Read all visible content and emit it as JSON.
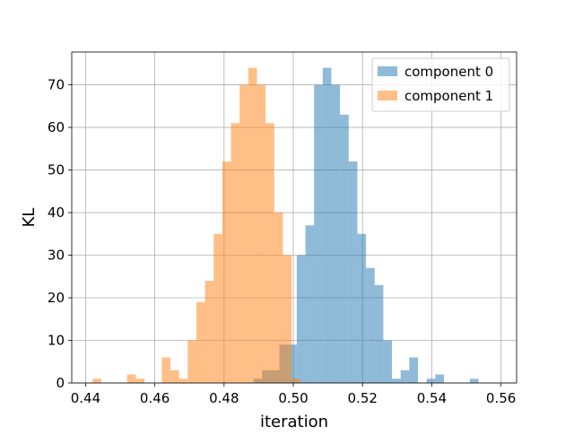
{
  "chart_data": {
    "type": "bar",
    "title": "",
    "xlabel": "iteration",
    "ylabel": "KL",
    "xlim": [
      0.436,
      0.5645
    ],
    "ylim": [
      0,
      77.7
    ],
    "xticks": [
      0.44,
      0.46,
      0.48,
      0.5,
      0.52,
      0.54,
      0.56
    ],
    "xtick_labels": [
      "0.44",
      "0.46",
      "0.48",
      "0.50",
      "0.52",
      "0.54",
      "0.56"
    ],
    "yticks": [
      0,
      10,
      20,
      30,
      40,
      50,
      60,
      70
    ],
    "ytick_labels": [
      "0",
      "10",
      "20",
      "30",
      "40",
      "50",
      "60",
      "70"
    ],
    "grid": true,
    "legend": {
      "placement": "top-right"
    },
    "colors": {
      "component_0": "#1f77b4",
      "component_1": "#ff7f0e",
      "alpha": 0.5,
      "grid": "#b0b0b0",
      "axes": "#000000"
    },
    "series": [
      {
        "name": "component 0",
        "bin_edges": [
          0.4885,
          0.491,
          0.4935,
          0.496,
          0.4985,
          0.501,
          0.5035,
          0.506,
          0.5085,
          0.511,
          0.5135,
          0.516,
          0.5185,
          0.521,
          0.5235,
          0.526,
          0.5285,
          0.531,
          0.5335,
          0.536,
          0.5385,
          0.541,
          0.5435,
          0.546,
          0.5485,
          0.551,
          0.5535,
          0.556,
          0.5585
        ],
        "counts": [
          1,
          3,
          3,
          9,
          9,
          30,
          37,
          70,
          74,
          70,
          63,
          52,
          35,
          27,
          23,
          10,
          1,
          3,
          6,
          0,
          1,
          2,
          0,
          0,
          0,
          1,
          0,
          0
        ]
      },
      {
        "name": "component 1",
        "bin_edges": [
          0.442,
          0.4445,
          0.447,
          0.4495,
          0.452,
          0.4545,
          0.457,
          0.4595,
          0.462,
          0.4645,
          0.467,
          0.4695,
          0.472,
          0.4745,
          0.477,
          0.4795,
          0.482,
          0.4845,
          0.487,
          0.4895,
          0.492,
          0.4945,
          0.497,
          0.4995,
          0.502
        ],
        "counts": [
          1,
          0,
          0,
          0,
          2,
          1,
          0,
          0,
          6,
          3,
          1,
          10,
          19,
          24,
          35,
          52,
          61,
          70,
          74,
          70,
          61,
          40,
          30,
          1
        ]
      }
    ]
  }
}
